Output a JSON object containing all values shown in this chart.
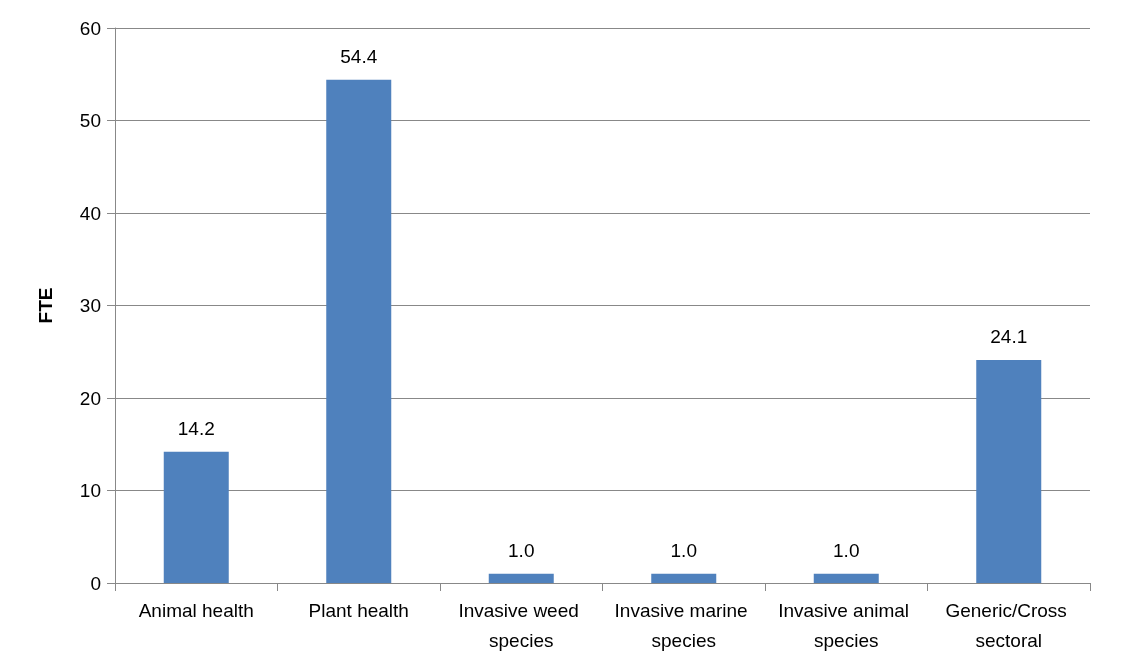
{
  "chart_data": {
    "type": "bar",
    "ylabel": "FTE",
    "categories": [
      "Animal health",
      "Plant health",
      "Invasive weed species",
      "Invasive marine species",
      "Invasive animal species",
      "Generic/Cross sectoral"
    ],
    "values": [
      14.2,
      54.4,
      1.0,
      1.0,
      1.0,
      24.1
    ],
    "value_labels": [
      "14.2",
      "54.4",
      "1.0",
      "1.0",
      "1.0",
      "24.1"
    ],
    "color": "#4f81bd",
    "ylim": [
      0,
      60
    ],
    "yticks": [
      0,
      10,
      20,
      30,
      40,
      50,
      60
    ],
    "grid": "y"
  }
}
